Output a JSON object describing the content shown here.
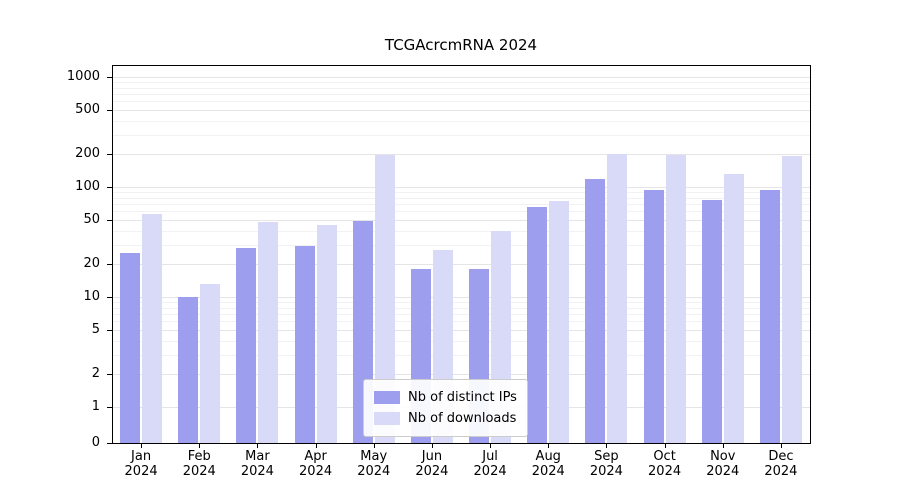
{
  "chart_data": {
    "type": "bar",
    "title": "TCGAcrcmRNA 2024",
    "categories": [
      "Jan",
      "Feb",
      "Mar",
      "Apr",
      "May",
      "Jun",
      "Jul",
      "Aug",
      "Sep",
      "Oct",
      "Nov",
      "Dec"
    ],
    "year": "2024",
    "series": [
      {
        "name": "Nb of distinct IPs",
        "color": "#9e9eee",
        "values": [
          25,
          10,
          28,
          29,
          49,
          18,
          18,
          66,
          118,
          93,
          76,
          94
        ]
      },
      {
        "name": "Nb of downloads",
        "color": "#d9d9f8",
        "values": [
          57,
          13,
          48,
          45,
          195,
          27,
          40,
          75,
          200,
          195,
          132,
          190
        ]
      }
    ],
    "yscale": "symlog",
    "yticks": [
      0,
      1,
      2,
      5,
      10,
      20,
      50,
      100,
      200,
      500,
      1000
    ],
    "ylim": [
      0,
      1000
    ],
    "grid": true,
    "legend_position": "lower center"
  }
}
